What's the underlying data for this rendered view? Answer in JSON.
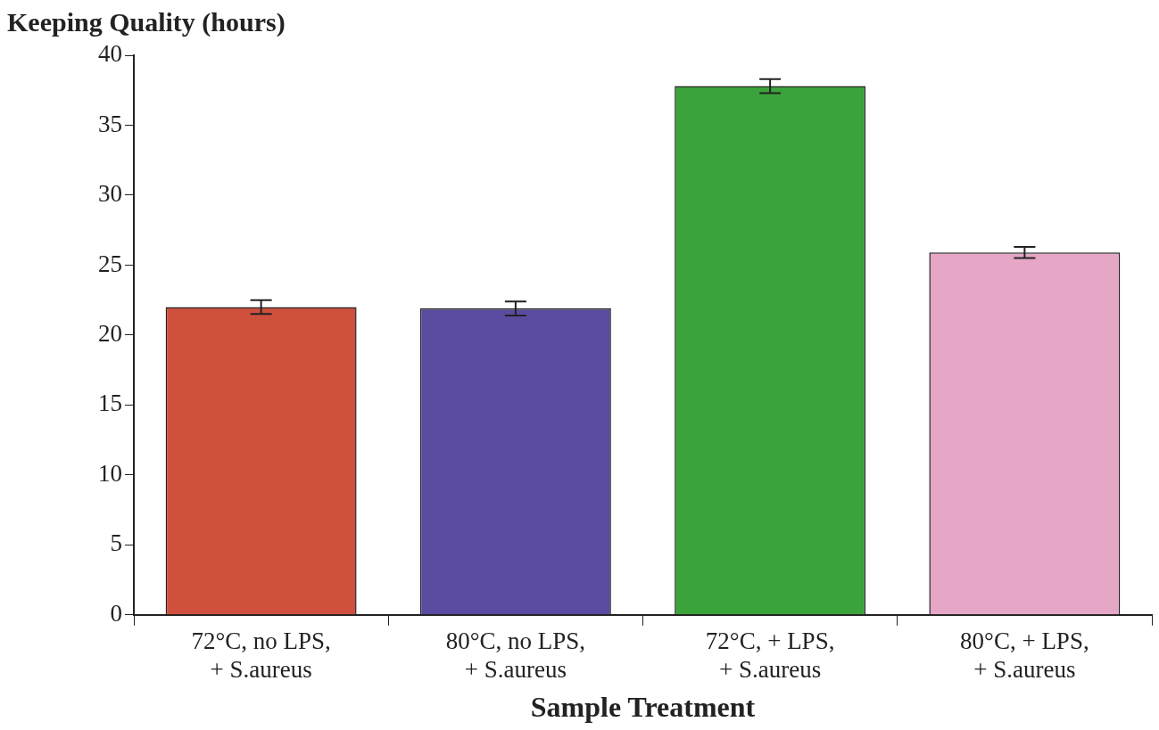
{
  "chart_data": {
    "type": "bar",
    "xlabel": "Sample Treatment",
    "ylabel": "Keeping Quality (hours)",
    "categories": [
      "72°C, no LPS, + S.aureus",
      "80°C, no LPS, + S.aureus",
      "72°C, + LPS, + S.aureus",
      "80°C, + LPS, + S.aureus"
    ],
    "values": [
      22,
      21.9,
      37.8,
      25.9
    ],
    "colors": [
      "#d0503e",
      "#5a4aa0",
      "#3aa33a",
      "#e6a6c6"
    ],
    "errors": [
      0.5,
      0.5,
      0.5,
      0.4
    ],
    "ylim": [
      0,
      40
    ],
    "yticks": [
      0,
      5,
      10,
      15,
      20,
      25,
      30,
      35,
      40
    ],
    "grid": false,
    "legend": false
  }
}
